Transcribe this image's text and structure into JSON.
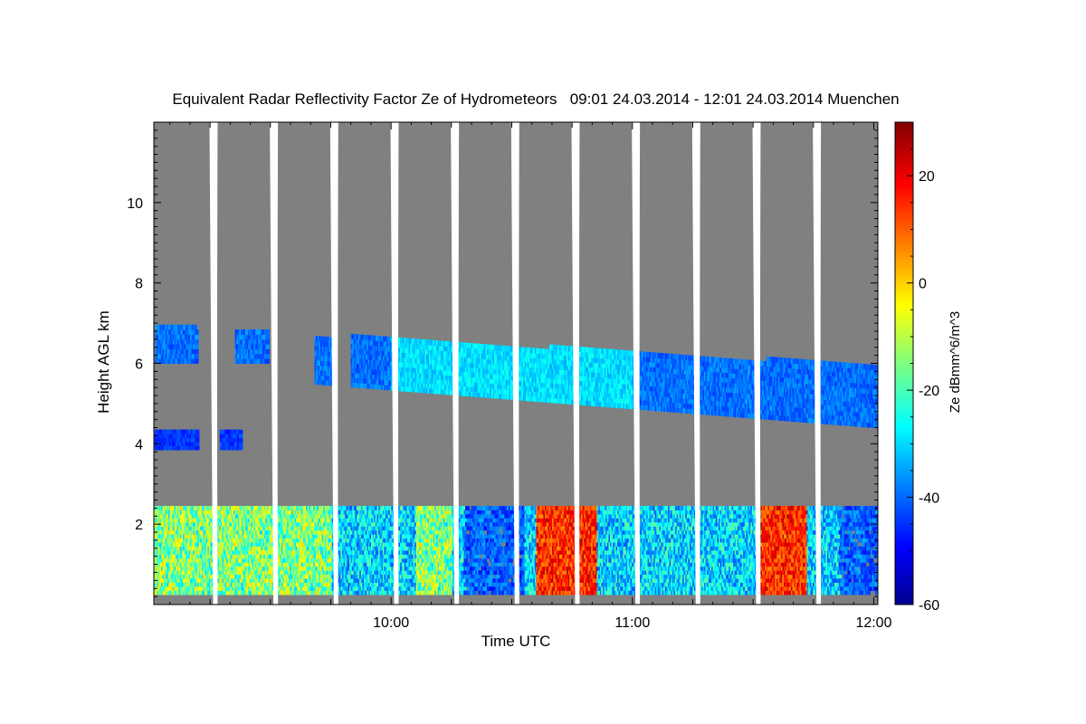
{
  "chart_data": {
    "type": "heatmap",
    "title": "Equivalent Radar Reflectivity Factor Ze of Hydrometeors   09:01 24.03.2014 - 12:01 24.03.2014 Muenchen",
    "xlabel": "Time UTC",
    "ylabel": "Height AGL km",
    "colorbar_label": "Ze dBmm^6/m^3",
    "x_range_hours": [
      9.017,
      12.017
    ],
    "x_ticks": [
      {
        "value": 10,
        "label": "10:00"
      },
      {
        "value": 11,
        "label": "11:00"
      },
      {
        "value": 12,
        "label": "12:00"
      }
    ],
    "ylim": [
      0,
      12
    ],
    "y_ticks": [
      2,
      4,
      6,
      8,
      10
    ],
    "clim": [
      -60,
      30
    ],
    "colorbar_ticks": [
      -60,
      -40,
      -20,
      0,
      20
    ],
    "colormap": "jet",
    "background_color": "#808080",
    "scan_gap_times_hours": [
      9.27,
      9.52,
      9.77,
      10.02,
      10.27,
      10.52,
      10.77,
      11.02,
      11.27,
      11.52,
      11.77
    ],
    "layers": [
      {
        "name": "boundary-layer",
        "base_km": 0.25,
        "top_km": 2.4,
        "ze_range": [
          -45,
          30
        ]
      },
      {
        "name": "mid-level-cloud",
        "base_km": 3.8,
        "top_km": 4.3,
        "ze_range": [
          -50,
          -40
        ]
      },
      {
        "name": "upper-cloud",
        "base_km": 4.2,
        "top_km": 7.0,
        "ze_range": [
          -50,
          -25
        ]
      }
    ]
  }
}
